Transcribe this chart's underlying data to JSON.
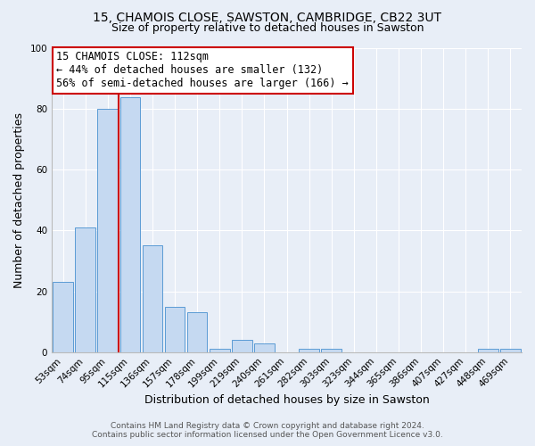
{
  "title": "15, CHAMOIS CLOSE, SAWSTON, CAMBRIDGE, CB22 3UT",
  "subtitle": "Size of property relative to detached houses in Sawston",
  "xlabel": "Distribution of detached houses by size in Sawston",
  "ylabel": "Number of detached properties",
  "bar_labels": [
    "53sqm",
    "74sqm",
    "95sqm",
    "115sqm",
    "136sqm",
    "157sqm",
    "178sqm",
    "199sqm",
    "219sqm",
    "240sqm",
    "261sqm",
    "282sqm",
    "303sqm",
    "323sqm",
    "344sqm",
    "365sqm",
    "386sqm",
    "407sqm",
    "427sqm",
    "448sqm",
    "469sqm"
  ],
  "bar_values": [
    23,
    41,
    80,
    84,
    35,
    15,
    13,
    1,
    4,
    3,
    0,
    1,
    1,
    0,
    0,
    0,
    0,
    0,
    0,
    1,
    1
  ],
  "bar_color": "#c5d9f1",
  "bar_edge_color": "#5b9bd5",
  "background_color": "#e8eef7",
  "grid_color": "#ffffff",
  "vline_x": 3.0,
  "vline_color": "#cc0000",
  "annotation_title": "15 CHAMOIS CLOSE: 112sqm",
  "annotation_line1": "← 44% of detached houses are smaller (132)",
  "annotation_line2": "56% of semi-detached houses are larger (166) →",
  "annotation_box_color": "#ffffff",
  "annotation_edge_color": "#cc0000",
  "ylim": [
    0,
    100
  ],
  "yticks": [
    0,
    20,
    40,
    60,
    80,
    100
  ],
  "footer1": "Contains HM Land Registry data © Crown copyright and database right 2024.",
  "footer2": "Contains public sector information licensed under the Open Government Licence v3.0.",
  "title_fontsize": 10,
  "subtitle_fontsize": 9,
  "axis_label_fontsize": 9,
  "tick_fontsize": 7.5,
  "annotation_fontsize": 8.5,
  "footer_fontsize": 6.5
}
